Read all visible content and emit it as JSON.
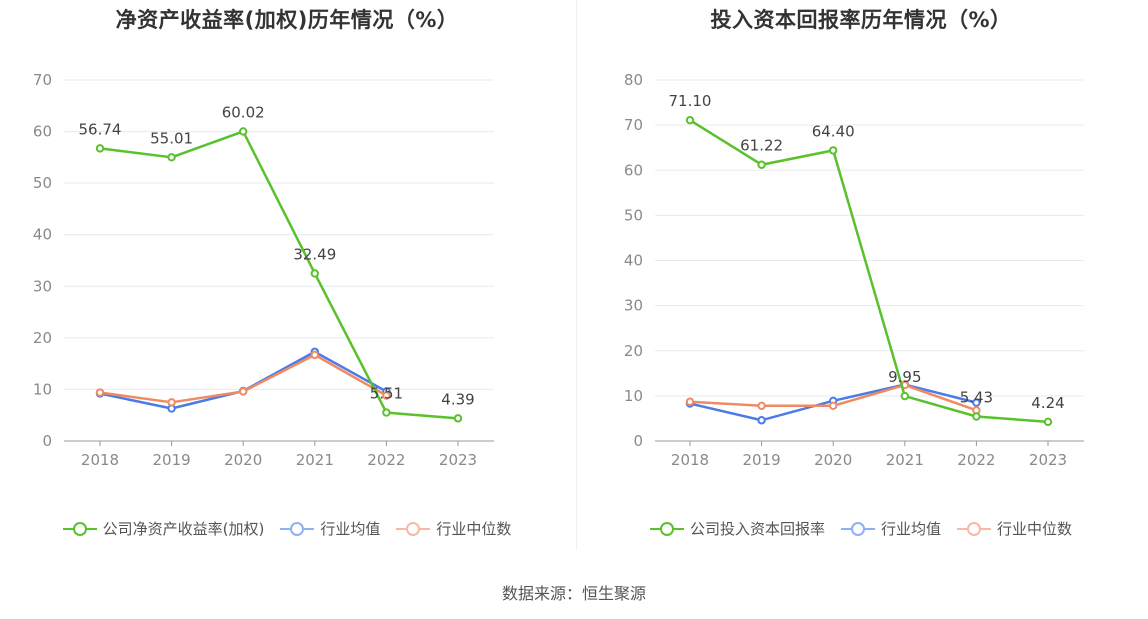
{
  "source_text": "数据来源：恒生聚源",
  "colors": {
    "company_left": "#59c12b",
    "company_right": "#59c12b",
    "industry_avg": "#4b7be5",
    "industry_median": "#f08a63",
    "legend_avg": "#8fb0f5",
    "legend_median": "#f7b9a2",
    "grid": "#e8eaf2",
    "axis_text": "#8a8a8a",
    "label_text": "#444444"
  },
  "chart_data": [
    {
      "type": "line",
      "title": "净资产收益率(加权)历年情况（%）",
      "x": [
        "2018",
        "2019",
        "2020",
        "2021",
        "2022",
        "2023"
      ],
      "ylim": [
        0,
        70
      ],
      "yticks": [
        0,
        10,
        20,
        30,
        40,
        50,
        60,
        70
      ],
      "grid": true,
      "legend_position": "bottom-center",
      "series": [
        {
          "name": "公司净资产收益率(加权)",
          "values": [
            56.74,
            55.01,
            60.02,
            32.49,
            5.51,
            4.39
          ],
          "labels": [
            "56.74",
            "55.01",
            "60.02",
            "32.49",
            "5.51",
            "4.39"
          ]
        },
        {
          "name": "行业均值",
          "values": [
            9.2,
            6.3,
            9.7,
            17.3,
            9.6,
            null
          ]
        },
        {
          "name": "行业中位数",
          "values": [
            9.4,
            7.5,
            9.6,
            16.7,
            8.8,
            null
          ]
        }
      ]
    },
    {
      "type": "line",
      "title": "投入资本回报率历年情况（%）",
      "x": [
        "2018",
        "2019",
        "2020",
        "2021",
        "2022",
        "2023"
      ],
      "ylim": [
        0,
        80
      ],
      "yticks": [
        0,
        10,
        20,
        30,
        40,
        50,
        60,
        70,
        80
      ],
      "grid": true,
      "legend_position": "bottom-center",
      "series": [
        {
          "name": "公司投入资本回报率",
          "values": [
            71.1,
            61.22,
            64.4,
            9.95,
            5.43,
            4.24
          ],
          "labels": [
            "71.10",
            "61.22",
            "64.40",
            "9.95",
            "5.43",
            "4.24"
          ]
        },
        {
          "name": "行业均值",
          "values": [
            8.3,
            4.6,
            8.9,
            12.5,
            8.5,
            null
          ]
        },
        {
          "name": "行业中位数",
          "values": [
            8.7,
            7.8,
            7.8,
            12.4,
            6.8,
            null
          ]
        }
      ]
    }
  ]
}
